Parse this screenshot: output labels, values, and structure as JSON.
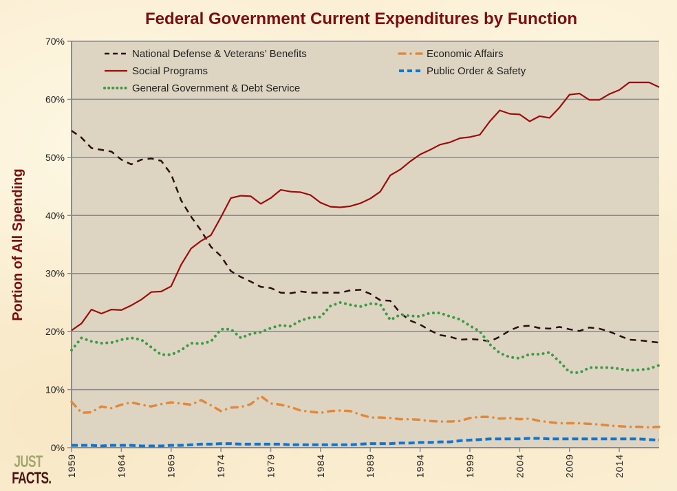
{
  "logo": {
    "line1": "JUST",
    "line2": "FACTS."
  },
  "chart_data": {
    "type": "line",
    "title": "Federal Government Current Expenditures by Function",
    "xlabel": "",
    "ylabel": "Portion of All Spending",
    "ylim": [
      0,
      70
    ],
    "xlim": [
      1959,
      2018
    ],
    "y_ticks": [
      "0%",
      "10%",
      "20%",
      "30%",
      "40%",
      "50%",
      "60%",
      "70%"
    ],
    "y_tick_values": [
      0,
      10,
      20,
      30,
      40,
      50,
      60,
      70
    ],
    "x_ticks": [
      "1959",
      "1964",
      "1969",
      "1974",
      "1979",
      "1984",
      "1989",
      "1994",
      "1999",
      "2004",
      "2009",
      "2014"
    ],
    "grid": true,
    "legend_position": "top",
    "x": [
      1959,
      1960,
      1961,
      1962,
      1963,
      1964,
      1965,
      1966,
      1967,
      1968,
      1969,
      1970,
      1971,
      1972,
      1973,
      1974,
      1975,
      1976,
      1977,
      1978,
      1979,
      1980,
      1981,
      1982,
      1983,
      1984,
      1985,
      1986,
      1987,
      1988,
      1989,
      1990,
      1991,
      1992,
      1993,
      1994,
      1995,
      1996,
      1997,
      1998,
      1999,
      2000,
      2001,
      2002,
      2003,
      2004,
      2005,
      2006,
      2007,
      2008,
      2009,
      2010,
      2011,
      2012,
      2013,
      2014,
      2015,
      2016,
      2017,
      2018
    ],
    "series": [
      {
        "name": "National Defense & Veterans’ Benefits",
        "color": "#2b0e0e",
        "style": "dash",
        "values": [
          54.6,
          53.4,
          51.6,
          51.3,
          51.0,
          49.6,
          48.8,
          49.6,
          49.8,
          49.4,
          47.1,
          42.6,
          39.8,
          37.4,
          34.6,
          33.0,
          30.4,
          29.4,
          28.6,
          27.7,
          27.5,
          26.7,
          26.6,
          26.9,
          26.7,
          26.7,
          26.7,
          26.7,
          27.1,
          27.2,
          26.5,
          25.4,
          25.3,
          23.2,
          21.9,
          21.2,
          20.2,
          19.4,
          19.1,
          18.6,
          18.7,
          18.6,
          18.3,
          19.1,
          20.2,
          20.9,
          21.0,
          20.6,
          20.5,
          20.8,
          20.4,
          20.1,
          20.7,
          20.5,
          20.0,
          19.3,
          18.6,
          18.5,
          18.3,
          18.1
        ]
      },
      {
        "name": "Social Programs",
        "color": "#9b0d0d",
        "style": "solid",
        "values": [
          20.2,
          21.4,
          23.8,
          23.1,
          23.8,
          23.7,
          24.5,
          25.5,
          26.8,
          26.9,
          27.8,
          31.5,
          34.3,
          35.6,
          36.6,
          39.7,
          43.0,
          43.4,
          43.3,
          42.0,
          43.0,
          44.4,
          44.1,
          44.0,
          43.5,
          42.2,
          41.5,
          41.4,
          41.6,
          42.1,
          42.9,
          44.1,
          46.9,
          47.9,
          49.3,
          50.5,
          51.3,
          52.2,
          52.6,
          53.3,
          53.5,
          53.9,
          56.2,
          58.1,
          57.5,
          57.4,
          56.2,
          57.1,
          56.8,
          58.6,
          60.8,
          61.0,
          59.9,
          59.9,
          60.9,
          61.6,
          62.9,
          62.9,
          62.9,
          62.1
        ]
      },
      {
        "name": "General Government & Debt Service",
        "color": "#3e9a47",
        "style": "dot",
        "values": [
          16.8,
          18.9,
          18.3,
          18.0,
          18.1,
          18.6,
          18.9,
          18.6,
          17.3,
          16.0,
          16.0,
          16.8,
          18.0,
          17.9,
          18.3,
          20.4,
          20.4,
          18.9,
          19.6,
          19.9,
          20.6,
          21.1,
          20.9,
          21.9,
          22.4,
          22.5,
          24.4,
          25.0,
          24.6,
          24.3,
          24.8,
          24.7,
          22.0,
          22.9,
          22.7,
          22.6,
          23.2,
          23.2,
          22.6,
          22.1,
          21.0,
          20.0,
          17.8,
          16.3,
          15.6,
          15.4,
          16.1,
          16.1,
          16.4,
          14.8,
          13.0,
          12.9,
          13.8,
          13.8,
          13.8,
          13.6,
          13.3,
          13.4,
          13.6,
          14.2
        ]
      },
      {
        "name": "Economic Affairs",
        "color": "#e0893c",
        "style": "dashdot",
        "values": [
          7.9,
          6.0,
          6.1,
          7.1,
          6.8,
          7.4,
          7.8,
          7.4,
          7.1,
          7.5,
          7.8,
          7.6,
          7.4,
          8.2,
          7.3,
          6.3,
          6.9,
          7.0,
          7.5,
          8.9,
          7.6,
          7.4,
          7.0,
          6.4,
          6.2,
          6.0,
          6.3,
          6.4,
          6.3,
          5.7,
          5.2,
          5.2,
          5.1,
          4.9,
          4.9,
          4.8,
          4.6,
          4.5,
          4.5,
          4.6,
          5.1,
          5.3,
          5.3,
          5.0,
          5.1,
          4.9,
          5.0,
          4.6,
          4.4,
          4.2,
          4.2,
          4.2,
          4.1,
          4.0,
          3.8,
          3.7,
          3.6,
          3.6,
          3.5,
          3.6
        ]
      },
      {
        "name": "Public Order & Safety",
        "color": "#1673c7",
        "style": "dash",
        "values": [
          0.4,
          0.4,
          0.4,
          0.3,
          0.4,
          0.4,
          0.4,
          0.3,
          0.3,
          0.3,
          0.4,
          0.4,
          0.5,
          0.6,
          0.6,
          0.7,
          0.7,
          0.6,
          0.6,
          0.6,
          0.6,
          0.6,
          0.5,
          0.5,
          0.5,
          0.5,
          0.5,
          0.5,
          0.5,
          0.6,
          0.7,
          0.7,
          0.7,
          0.8,
          0.8,
          0.9,
          0.9,
          1.0,
          1.0,
          1.2,
          1.3,
          1.4,
          1.5,
          1.5,
          1.5,
          1.5,
          1.6,
          1.6,
          1.5,
          1.5,
          1.5,
          1.5,
          1.5,
          1.5,
          1.5,
          1.5,
          1.5,
          1.5,
          1.4,
          1.3
        ]
      }
    ],
    "legend_layout": [
      {
        "series_index": 0,
        "column": 0,
        "row": 0
      },
      {
        "series_index": 3,
        "column": 1,
        "row": 0
      },
      {
        "series_index": 1,
        "column": 0,
        "row": 1
      },
      {
        "series_index": 4,
        "column": 1,
        "row": 1
      },
      {
        "series_index": 2,
        "column": 0,
        "row": 2
      }
    ]
  }
}
